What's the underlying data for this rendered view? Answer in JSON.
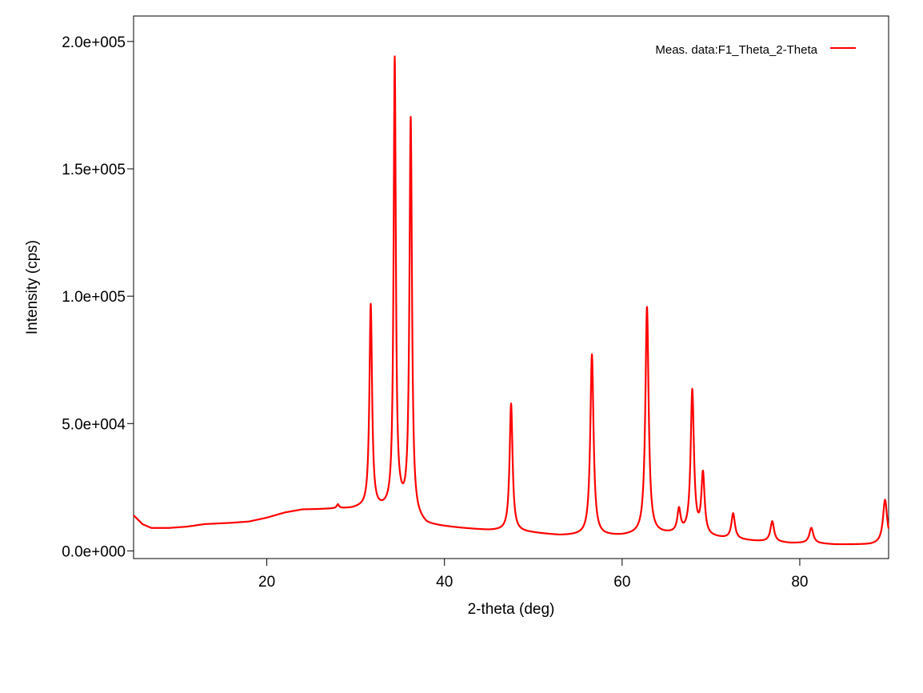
{
  "chart_data": {
    "type": "line",
    "title": "",
    "xlabel": "2-theta (deg)",
    "ylabel": "Intensity (cps)",
    "xlim": [
      5,
      90
    ],
    "ylim": [
      -3000,
      210000
    ],
    "x_ticks": [
      20,
      40,
      60,
      80
    ],
    "x_tick_labels": [
      "20",
      "40",
      "60",
      "80"
    ],
    "y_ticks": [
      0,
      50000,
      100000,
      150000,
      200000
    ],
    "y_tick_labels": [
      "0.0e+000",
      "5.0e+004",
      "1.0e+005",
      "1.5e+005",
      "2.0e+005"
    ],
    "grid": false,
    "legend_position": "top-right",
    "series": [
      {
        "name": "Meas. data:F1_Theta_2-Theta",
        "color": "#ff0000",
        "background": [
          [
            5,
            14000
          ],
          [
            6,
            10500
          ],
          [
            7,
            9000
          ],
          [
            9,
            9000
          ],
          [
            11,
            9500
          ],
          [
            13,
            10500
          ],
          [
            16,
            11000
          ],
          [
            18,
            11500
          ],
          [
            20,
            13000
          ],
          [
            22,
            15000
          ],
          [
            24,
            16200
          ],
          [
            26,
            16300
          ],
          [
            28,
            16500
          ],
          [
            29.5,
            16400
          ],
          [
            30.5,
            16600
          ],
          [
            32.5,
            16000
          ],
          [
            34,
            16000
          ],
          [
            35,
            17000
          ],
          [
            37,
            12000
          ],
          [
            38,
            10000
          ],
          [
            42,
            8800
          ],
          [
            45,
            8000
          ],
          [
            47.3,
            7800
          ],
          [
            50,
            7000
          ],
          [
            53,
            6000
          ],
          [
            55,
            6000
          ],
          [
            56.6,
            6000
          ],
          [
            58,
            5800
          ],
          [
            60,
            5800
          ],
          [
            62.8,
            6500
          ],
          [
            65,
            6500
          ],
          [
            66.3,
            6500
          ],
          [
            67.8,
            6500
          ],
          [
            69,
            5500
          ],
          [
            72.5,
            4500
          ],
          [
            75,
            3800
          ],
          [
            77,
            3500
          ],
          [
            79,
            3000
          ],
          [
            81.2,
            3000
          ],
          [
            84,
            2500
          ],
          [
            88,
            2500
          ],
          [
            89.5,
            3000
          ],
          [
            90,
            3200
          ]
        ],
        "peaks": [
          [
            28.0,
            1500,
            0.15
          ],
          [
            31.7,
            80000,
            0.18
          ],
          [
            34.4,
            176000,
            0.15
          ],
          [
            36.2,
            155000,
            0.17
          ],
          [
            47.5,
            50000,
            0.2
          ],
          [
            56.6,
            71000,
            0.22
          ],
          [
            62.8,
            89000,
            0.22
          ],
          [
            66.4,
            9000,
            0.22
          ],
          [
            67.9,
            56000,
            0.22
          ],
          [
            69.1,
            24000,
            0.22
          ],
          [
            72.5,
            10000,
            0.24
          ],
          [
            76.9,
            8000,
            0.25
          ],
          [
            81.3,
            6000,
            0.27
          ],
          [
            89.6,
            17000,
            0.28
          ]
        ]
      }
    ]
  }
}
